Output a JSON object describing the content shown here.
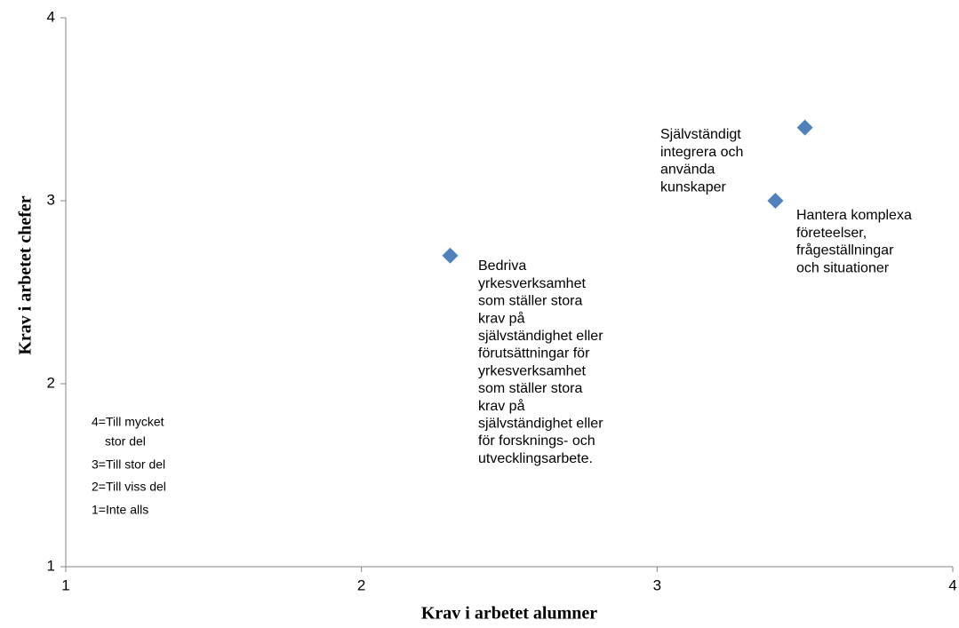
{
  "chart_data": {
    "type": "scatter",
    "x_label": "Krav i arbetet alumner",
    "y_label": "Krav i arbetet chefer",
    "x": [
      2.3,
      3.4,
      3.5
    ],
    "series": [
      {
        "color": "#4f81bd",
        "values": [
          2.7,
          3.0,
          3.4
        ]
      }
    ],
    "xlim": [
      1,
      4
    ],
    "ylim": [
      1,
      4
    ],
    "xticks": [
      1,
      2,
      3,
      4
    ],
    "yticks": [
      1,
      2,
      3,
      4
    ],
    "grid": false,
    "annotations": [
      {
        "lines": [
          "Bedriva",
          "yrkesverksamhet",
          "som ställer stora",
          "krav på",
          "självständighet eller",
          "förutsättningar för",
          "yrkesverksamhet",
          "som ställer stora",
          "krav på",
          "självständighet eller",
          "för forsknings- och",
          "utvecklingsarbete."
        ]
      },
      {
        "lines": [
          "Hantera komplexa",
          "företeelser,",
          "frågeställningar",
          "och situationer"
        ]
      },
      {
        "lines": [
          "Självständigt",
          "integrera och",
          "använda",
          "kunskaper"
        ]
      }
    ],
    "key": [
      "4=Till mycket",
      "stor del",
      "3=Till stor del",
      "2=Till viss del",
      "1=Inte alls"
    ]
  }
}
